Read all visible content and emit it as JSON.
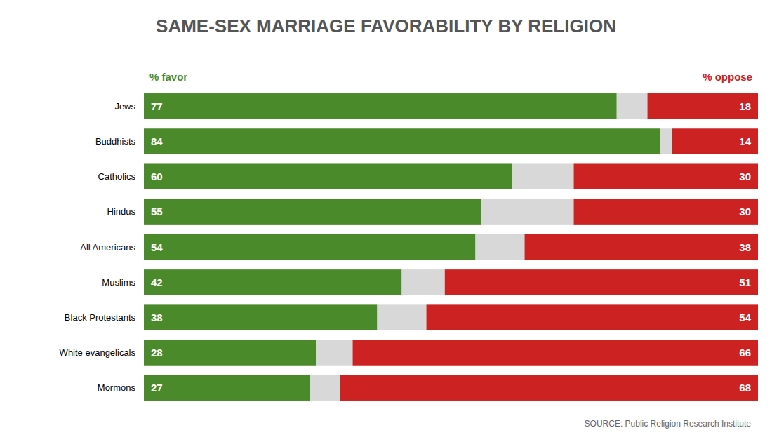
{
  "chart_data": {
    "type": "bar",
    "orientation": "horizontal",
    "stacked": true,
    "title": "SAME-SEX MARRIAGE FAVORABILITY BY RELIGION",
    "categories": [
      "Jews",
      "Buddhists",
      "Catholics",
      "Hindus",
      "All Americans",
      "Muslims",
      "Black Protestants",
      "White evangelicals",
      "Mormons"
    ],
    "series": [
      {
        "name": "% favor",
        "color": "#4a8a2a",
        "values": [
          77,
          84,
          60,
          55,
          54,
          42,
          38,
          28,
          27
        ]
      },
      {
        "color": "#d8d8d8",
        "data_labels": false,
        "values": [
          5,
          2,
          10,
          15,
          8,
          7,
          8,
          6,
          5
        ]
      },
      {
        "name": "% oppose",
        "color": "#cc2222",
        "values": [
          18,
          14,
          30,
          30,
          38,
          51,
          54,
          66,
          68
        ]
      }
    ],
    "xlim": [
      0,
      100
    ],
    "grid": false,
    "tick_labels": false,
    "data_labels": true,
    "annotations": [
      "SOURCE: Public Religion Research Institute"
    ]
  }
}
